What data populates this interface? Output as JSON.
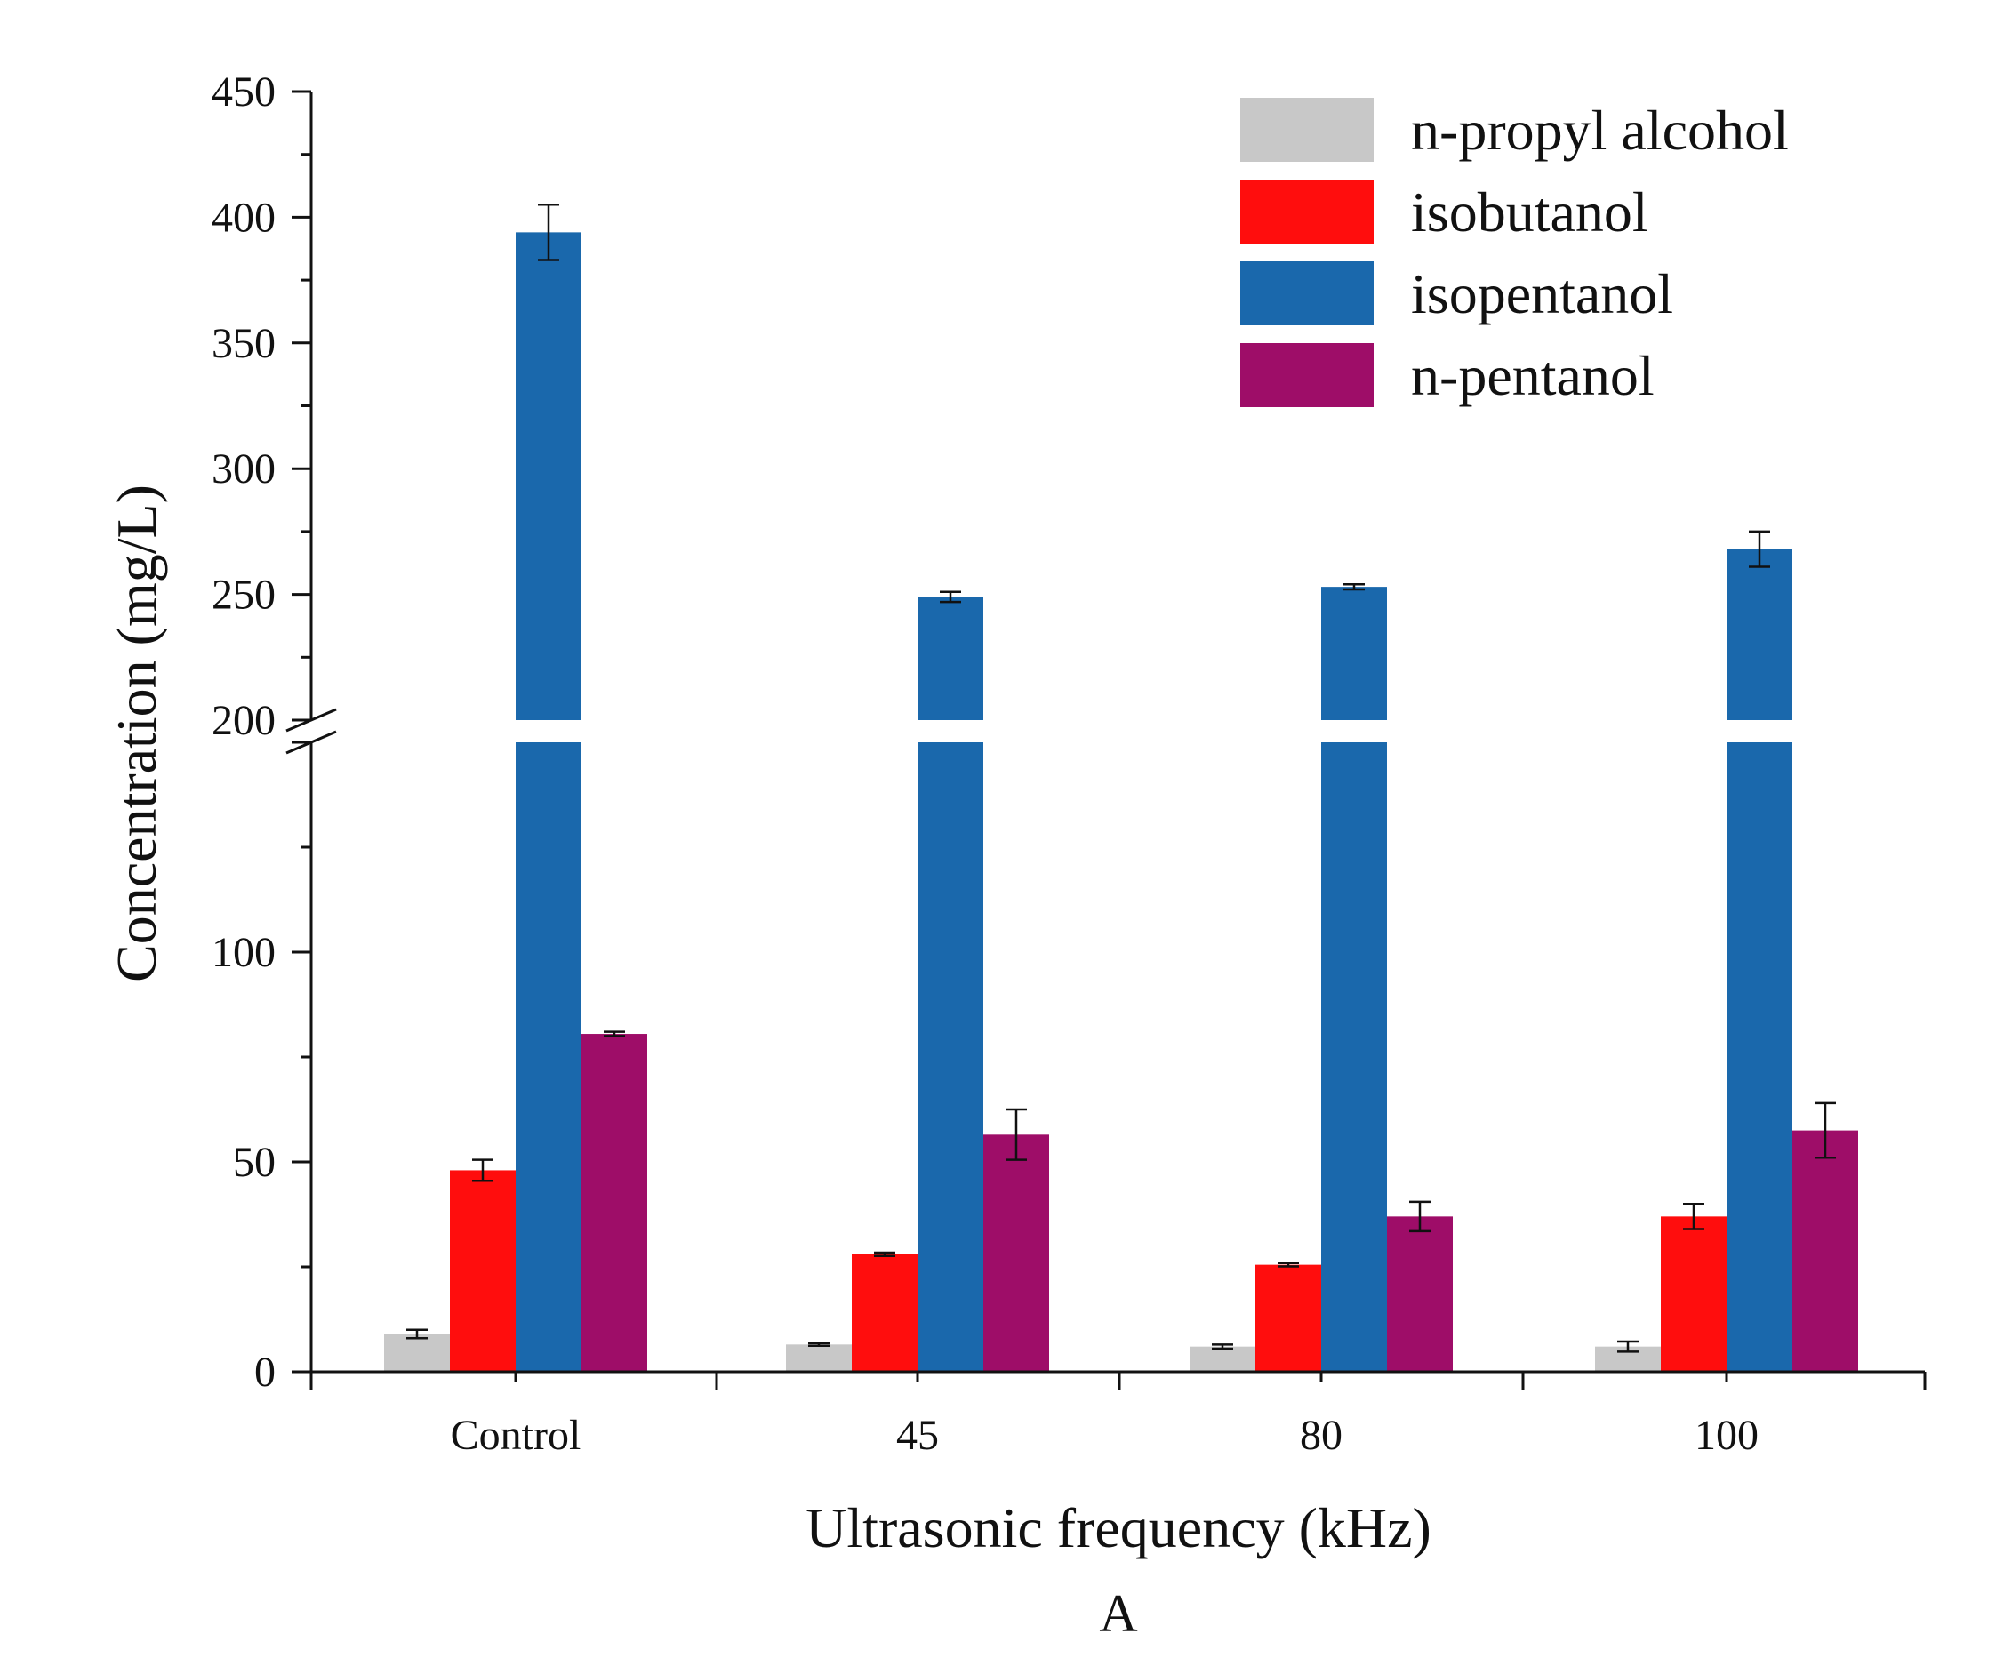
{
  "chart_data": {
    "type": "bar",
    "title": "",
    "panel_label": "A",
    "xlabel": "Ultrasonic frequency (kHz)",
    "ylabel": "Concentration (mg/L)",
    "categories": [
      "Control",
      "45",
      "80",
      "100"
    ],
    "y_axis": {
      "broken": true,
      "lower_segment": {
        "range": [
          0,
          150
        ],
        "tick_labels": [
          "0",
          "50",
          "100"
        ]
      },
      "upper_segment": {
        "range": [
          200,
          450
        ],
        "tick_labels": [
          "200",
          "250",
          "300",
          "350",
          "400",
          "450"
        ]
      }
    },
    "ylim": [
      0,
      450
    ],
    "grid": false,
    "legend_position": "top-right",
    "series": [
      {
        "name": "n-propyl alcohol",
        "color": "#c8c8c8",
        "values": [
          9,
          6.5,
          6,
          6
        ],
        "errors": [
          1,
          0.3,
          0.5,
          1.2
        ]
      },
      {
        "name": "isobutanol",
        "color": "#ff0d0d",
        "values": [
          48,
          28,
          25.5,
          37
        ],
        "errors": [
          2.5,
          0.4,
          0.4,
          3
        ]
      },
      {
        "name": "isopentanol",
        "color": "#1a68ac",
        "values": [
          394,
          249,
          253,
          268
        ],
        "errors": [
          11,
          2,
          1,
          7
        ]
      },
      {
        "name": "n-pentanol",
        "color": "#9e0d68",
        "values": [
          80.5,
          56.5,
          37,
          57.5
        ],
        "errors": [
          0.5,
          6,
          3.5,
          6.5
        ]
      }
    ]
  }
}
